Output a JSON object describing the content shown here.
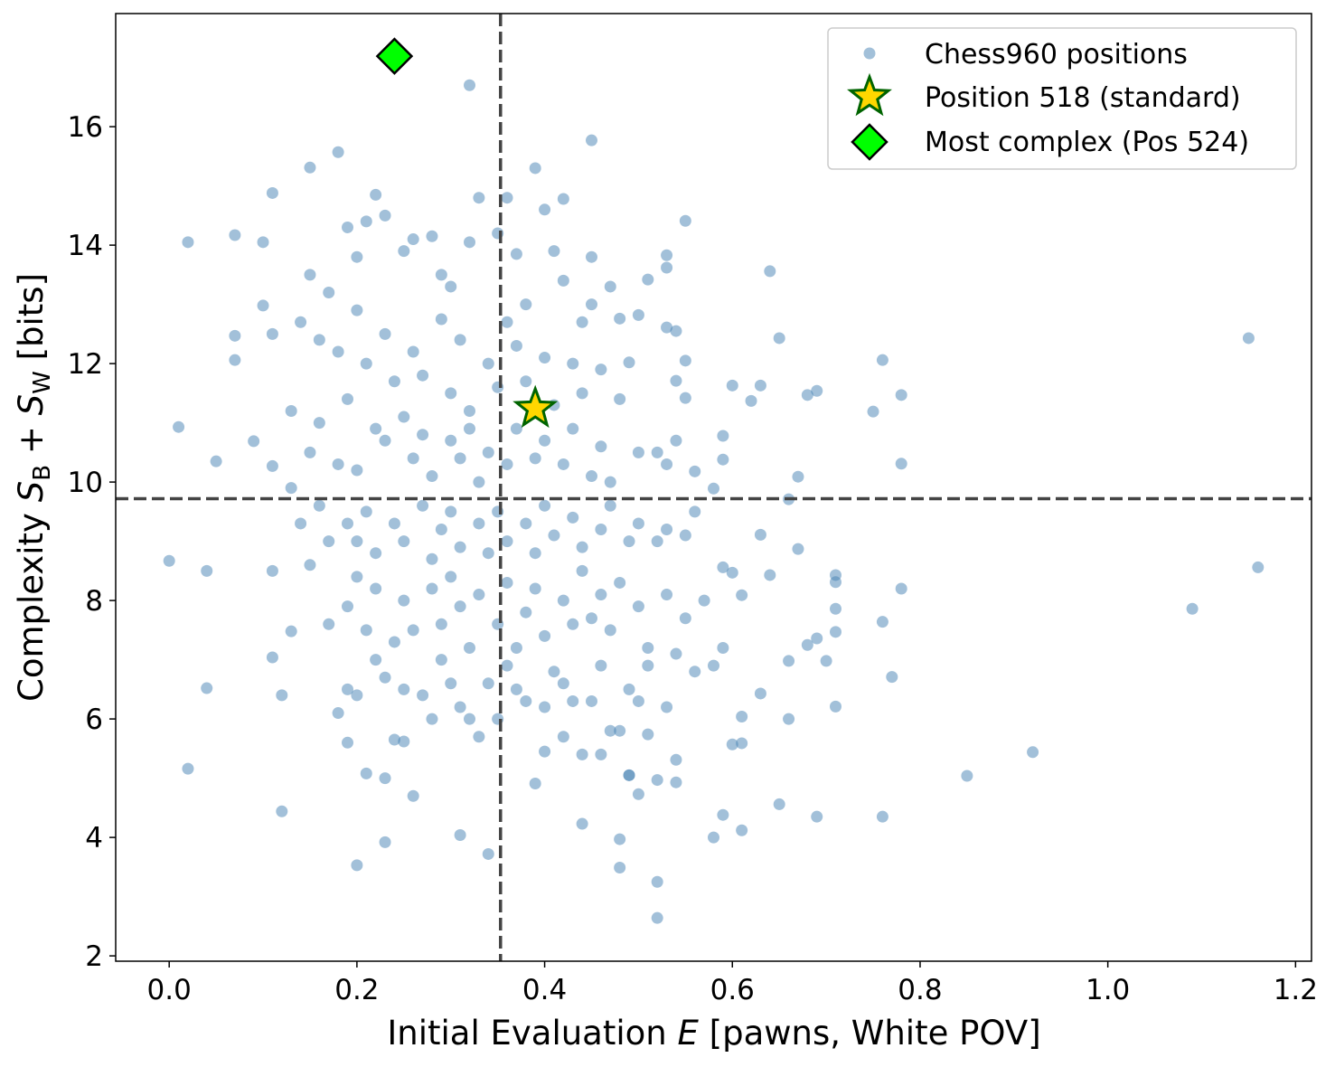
{
  "chart_data": {
    "type": "scatter",
    "xlabel": {
      "pre": "Initial Evaluation ",
      "var": "E",
      "post": " [pawns, White POV]"
    },
    "ylabel": {
      "pre": "Complexity ",
      "s1": "S",
      "sub1": "B",
      "mid": " + ",
      "s2": "S",
      "sub2": "W",
      "post": " [bits]"
    },
    "xlim": [
      -0.057,
      1.217
    ],
    "ylim": [
      1.91,
      17.91
    ],
    "xticks": [
      "0.0",
      "0.2",
      "0.4",
      "0.6",
      "0.8",
      "1.0",
      "1.2"
    ],
    "yticks": [
      "2",
      "4",
      "6",
      "8",
      "10",
      "12",
      "14",
      "16"
    ],
    "grid": false,
    "legend_position": "top-right",
    "reference_lines": {
      "x": 0.353,
      "y": 9.72,
      "style": "dashed",
      "color": "#444444"
    },
    "series": [
      {
        "name": "Chess960 positions",
        "marker": "circle",
        "color": "#4682b4",
        "points": [
          [
            0.0,
            8.67
          ],
          [
            0.01,
            10.93
          ],
          [
            0.02,
            14.05
          ],
          [
            0.04,
            8.5
          ],
          [
            0.04,
            6.52
          ],
          [
            0.02,
            5.16
          ],
          [
            0.05,
            10.35
          ],
          [
            0.07,
            14.17
          ],
          [
            0.07,
            12.47
          ],
          [
            0.07,
            12.06
          ],
          [
            0.09,
            10.69
          ],
          [
            0.1,
            12.98
          ],
          [
            0.1,
            14.05
          ],
          [
            0.11,
            14.88
          ],
          [
            0.11,
            12.5
          ],
          [
            0.11,
            10.27
          ],
          [
            0.11,
            8.5
          ],
          [
            0.11,
            7.04
          ],
          [
            0.12,
            4.44
          ],
          [
            0.12,
            6.4
          ],
          [
            0.13,
            7.48
          ],
          [
            0.15,
            15.31
          ],
          [
            0.18,
            15.57
          ],
          [
            0.2,
            3.53
          ],
          [
            0.21,
            5.08
          ],
          [
            0.23,
            5.0
          ],
          [
            0.23,
            3.92
          ],
          [
            0.24,
            5.65
          ],
          [
            0.26,
            4.7
          ],
          [
            0.32,
            16.7
          ],
          [
            0.31,
            4.04
          ],
          [
            0.34,
            3.72
          ],
          [
            0.33,
            5.7
          ],
          [
            0.45,
            15.77
          ],
          [
            0.39,
            15.3
          ],
          [
            0.4,
            14.6
          ],
          [
            0.42,
            14.78
          ],
          [
            0.45,
            13.8
          ],
          [
            0.55,
            14.41
          ],
          [
            0.53,
            13.83
          ],
          [
            0.64,
            13.56
          ],
          [
            0.65,
            12.43
          ],
          [
            1.15,
            12.43
          ],
          [
            1.16,
            8.56
          ],
          [
            1.09,
            7.86
          ],
          [
            0.92,
            5.44
          ],
          [
            0.85,
            5.04
          ],
          [
            0.76,
            12.06
          ],
          [
            0.78,
            11.47
          ],
          [
            0.78,
            10.31
          ],
          [
            0.75,
            11.19
          ],
          [
            0.69,
            11.54
          ],
          [
            0.68,
            11.47
          ],
          [
            0.63,
            11.63
          ],
          [
            0.62,
            11.37
          ],
          [
            0.6,
            11.63
          ],
          [
            0.67,
            10.09
          ],
          [
            0.66,
            9.71
          ],
          [
            0.67,
            8.87
          ],
          [
            0.71,
            8.43
          ],
          [
            0.71,
            8.31
          ],
          [
            0.71,
            7.86
          ],
          [
            0.71,
            7.47
          ],
          [
            0.78,
            8.2
          ],
          [
            0.76,
            7.64
          ],
          [
            0.77,
            6.71
          ],
          [
            0.71,
            6.21
          ],
          [
            0.7,
            6.98
          ],
          [
            0.69,
            7.36
          ],
          [
            0.68,
            7.25
          ],
          [
            0.66,
            6.98
          ],
          [
            0.66,
            6.0
          ],
          [
            0.65,
            4.56
          ],
          [
            0.69,
            4.35
          ],
          [
            0.76,
            4.35
          ],
          [
            0.61,
            4.12
          ],
          [
            0.58,
            4.0
          ],
          [
            0.59,
            4.38
          ],
          [
            0.61,
            5.59
          ],
          [
            0.6,
            5.57
          ],
          [
            0.61,
            6.04
          ],
          [
            0.63,
            6.43
          ],
          [
            0.52,
            2.64
          ],
          [
            0.52,
            3.25
          ],
          [
            0.48,
            3.49
          ],
          [
            0.48,
            3.97
          ],
          [
            0.44,
            4.23
          ],
          [
            0.5,
            4.73
          ],
          [
            0.49,
            5.05
          ],
          [
            0.39,
            4.91
          ],
          [
            0.4,
            5.45
          ],
          [
            0.54,
            4.93
          ],
          [
            0.54,
            5.31
          ],
          [
            0.51,
            5.74
          ],
          [
            0.63,
            9.11
          ],
          [
            0.64,
            8.43
          ],
          [
            0.61,
            8.09
          ],
          [
            0.59,
            8.56
          ],
          [
            0.6,
            8.47
          ],
          [
            0.58,
            9.89
          ],
          [
            0.59,
            10.78
          ],
          [
            0.59,
            10.38
          ],
          [
            0.56,
            10.18
          ],
          [
            0.54,
            10.7
          ],
          [
            0.55,
            11.42
          ],
          [
            0.54,
            11.71
          ],
          [
            0.55,
            12.05
          ],
          [
            0.54,
            12.55
          ],
          [
            0.53,
            12.61
          ],
          [
            0.51,
            13.42
          ],
          [
            0.53,
            13.62
          ],
          [
            0.48,
            12.76
          ],
          [
            0.5,
            12.82
          ],
          [
            0.49,
            12.02
          ],
          [
            0.15,
            13.5
          ],
          [
            0.17,
            13.2
          ],
          [
            0.19,
            14.3
          ],
          [
            0.2,
            13.8
          ],
          [
            0.21,
            14.4
          ],
          [
            0.22,
            14.85
          ],
          [
            0.23,
            14.5
          ],
          [
            0.25,
            13.9
          ],
          [
            0.26,
            14.1
          ],
          [
            0.28,
            14.15
          ],
          [
            0.29,
            13.5
          ],
          [
            0.3,
            13.3
          ],
          [
            0.32,
            14.05
          ],
          [
            0.33,
            14.8
          ],
          [
            0.35,
            14.2
          ],
          [
            0.36,
            14.8
          ],
          [
            0.37,
            13.85
          ],
          [
            0.38,
            13.0
          ],
          [
            0.41,
            13.9
          ],
          [
            0.42,
            13.4
          ],
          [
            0.44,
            12.7
          ],
          [
            0.45,
            13.0
          ],
          [
            0.47,
            13.3
          ],
          [
            0.14,
            12.7
          ],
          [
            0.16,
            12.4
          ],
          [
            0.18,
            12.2
          ],
          [
            0.2,
            12.9
          ],
          [
            0.21,
            12.0
          ],
          [
            0.23,
            12.5
          ],
          [
            0.24,
            11.7
          ],
          [
            0.26,
            12.2
          ],
          [
            0.27,
            11.8
          ],
          [
            0.29,
            12.75
          ],
          [
            0.3,
            11.5
          ],
          [
            0.31,
            12.4
          ],
          [
            0.32,
            11.2
          ],
          [
            0.34,
            12.0
          ],
          [
            0.35,
            11.6
          ],
          [
            0.36,
            12.7
          ],
          [
            0.37,
            12.3
          ],
          [
            0.38,
            11.7
          ],
          [
            0.4,
            12.1
          ],
          [
            0.41,
            11.3
          ],
          [
            0.43,
            12.0
          ],
          [
            0.44,
            11.5
          ],
          [
            0.46,
            11.9
          ],
          [
            0.48,
            11.4
          ],
          [
            0.13,
            11.2
          ],
          [
            0.15,
            10.5
          ],
          [
            0.16,
            11.0
          ],
          [
            0.18,
            10.3
          ],
          [
            0.19,
            11.4
          ],
          [
            0.2,
            10.2
          ],
          [
            0.22,
            10.9
          ],
          [
            0.23,
            10.7
          ],
          [
            0.25,
            11.1
          ],
          [
            0.26,
            10.4
          ],
          [
            0.27,
            10.8
          ],
          [
            0.28,
            10.1
          ],
          [
            0.3,
            10.7
          ],
          [
            0.31,
            10.4
          ],
          [
            0.32,
            10.9
          ],
          [
            0.33,
            10.0
          ],
          [
            0.34,
            10.5
          ],
          [
            0.36,
            10.3
          ],
          [
            0.37,
            10.9
          ],
          [
            0.39,
            10.4
          ],
          [
            0.4,
            10.7
          ],
          [
            0.42,
            10.3
          ],
          [
            0.43,
            10.9
          ],
          [
            0.45,
            10.1
          ],
          [
            0.46,
            10.6
          ],
          [
            0.47,
            10.0
          ],
          [
            0.5,
            10.5
          ],
          [
            0.52,
            10.5
          ],
          [
            0.53,
            10.3
          ],
          [
            0.13,
            9.9
          ],
          [
            0.14,
            9.3
          ],
          [
            0.16,
            9.6
          ],
          [
            0.17,
            9.0
          ],
          [
            0.19,
            9.3
          ],
          [
            0.2,
            9.0
          ],
          [
            0.21,
            9.5
          ],
          [
            0.22,
            8.8
          ],
          [
            0.24,
            9.3
          ],
          [
            0.25,
            9.0
          ],
          [
            0.27,
            9.6
          ],
          [
            0.28,
            8.7
          ],
          [
            0.29,
            9.2
          ],
          [
            0.3,
            9.5
          ],
          [
            0.31,
            8.9
          ],
          [
            0.33,
            9.3
          ],
          [
            0.34,
            8.8
          ],
          [
            0.35,
            9.5
          ],
          [
            0.36,
            9.0
          ],
          [
            0.38,
            9.3
          ],
          [
            0.39,
            8.8
          ],
          [
            0.4,
            9.6
          ],
          [
            0.41,
            9.1
          ],
          [
            0.43,
            9.4
          ],
          [
            0.44,
            8.9
          ],
          [
            0.46,
            9.2
          ],
          [
            0.47,
            9.6
          ],
          [
            0.49,
            9.0
          ],
          [
            0.5,
            9.3
          ],
          [
            0.52,
            9.0
          ],
          [
            0.53,
            9.2
          ],
          [
            0.55,
            9.1
          ],
          [
            0.56,
            9.5
          ],
          [
            0.15,
            8.6
          ],
          [
            0.17,
            7.6
          ],
          [
            0.19,
            7.9
          ],
          [
            0.2,
            8.4
          ],
          [
            0.21,
            7.5
          ],
          [
            0.22,
            8.2
          ],
          [
            0.24,
            7.3
          ],
          [
            0.25,
            8.0
          ],
          [
            0.26,
            7.5
          ],
          [
            0.28,
            8.2
          ],
          [
            0.29,
            7.6
          ],
          [
            0.3,
            8.4
          ],
          [
            0.31,
            7.9
          ],
          [
            0.32,
            7.2
          ],
          [
            0.33,
            8.1
          ],
          [
            0.35,
            7.6
          ],
          [
            0.36,
            8.3
          ],
          [
            0.37,
            7.2
          ],
          [
            0.38,
            7.8
          ],
          [
            0.39,
            8.2
          ],
          [
            0.4,
            7.4
          ],
          [
            0.42,
            8.0
          ],
          [
            0.43,
            7.6
          ],
          [
            0.44,
            8.5
          ],
          [
            0.45,
            7.7
          ],
          [
            0.46,
            8.1
          ],
          [
            0.47,
            7.5
          ],
          [
            0.48,
            8.3
          ],
          [
            0.5,
            7.9
          ],
          [
            0.51,
            7.2
          ],
          [
            0.53,
            8.1
          ],
          [
            0.55,
            7.7
          ],
          [
            0.57,
            8.0
          ],
          [
            0.18,
            6.1
          ],
          [
            0.19,
            6.5
          ],
          [
            0.2,
            6.4
          ],
          [
            0.22,
            7.0
          ],
          [
            0.23,
            6.7
          ],
          [
            0.25,
            6.5
          ],
          [
            0.27,
            6.4
          ],
          [
            0.28,
            6.0
          ],
          [
            0.29,
            7.0
          ],
          [
            0.3,
            6.6
          ],
          [
            0.31,
            6.2
          ],
          [
            0.32,
            6.0
          ],
          [
            0.34,
            6.6
          ],
          [
            0.35,
            6.0
          ],
          [
            0.36,
            6.9
          ],
          [
            0.37,
            6.5
          ],
          [
            0.38,
            6.3
          ],
          [
            0.4,
            6.2
          ],
          [
            0.41,
            6.8
          ],
          [
            0.42,
            6.6
          ],
          [
            0.43,
            6.3
          ],
          [
            0.45,
            6.3
          ],
          [
            0.46,
            6.9
          ],
          [
            0.48,
            5.8
          ],
          [
            0.49,
            6.5
          ],
          [
            0.5,
            6.3
          ],
          [
            0.51,
            6.9
          ],
          [
            0.53,
            6.2
          ],
          [
            0.54,
            7.1
          ],
          [
            0.56,
            6.8
          ],
          [
            0.58,
            6.9
          ],
          [
            0.59,
            7.2
          ],
          [
            0.42,
            5.7
          ],
          [
            0.44,
            5.4
          ],
          [
            0.46,
            5.4
          ],
          [
            0.47,
            5.8
          ],
          [
            0.49,
            5.05
          ],
          [
            0.52,
            4.97
          ],
          [
            0.19,
            5.6
          ],
          [
            0.25,
            5.62
          ]
        ]
      },
      {
        "name": "Position 518 (standard)",
        "marker": "star",
        "color": "#ffd700",
        "edge": "#006400",
        "points": [
          [
            0.39,
            11.24
          ]
        ]
      },
      {
        "name": "Most complex (Pos 524)",
        "marker": "diamond",
        "color": "#00ff00",
        "edge": "#000000",
        "points": [
          [
            0.24,
            17.19
          ]
        ]
      }
    ]
  }
}
